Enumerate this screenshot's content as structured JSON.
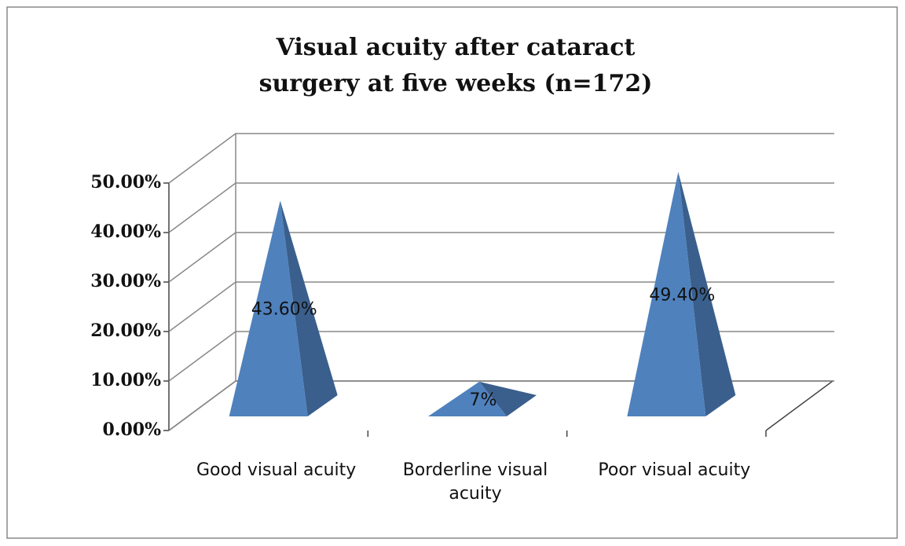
{
  "chart_data": {
    "type": "pyramid3d",
    "title": "Visual acuity after cataract surgery at five weeks (n=172)",
    "categories": [
      "Good visual acuity",
      "Borderline visual acuity",
      "Poor visual acuity"
    ],
    "values": [
      43.6,
      7,
      49.4
    ],
    "value_labels": [
      "43.60%",
      "7%",
      "49.40%"
    ],
    "color": "#4f81bd",
    "ylim": [
      0,
      50
    ],
    "yticks": [
      {
        "value": 0,
        "label": "0.00%"
      },
      {
        "value": 10,
        "label": "10.00%"
      },
      {
        "value": 20,
        "label": "20.00%"
      },
      {
        "value": 30,
        "label": "30.00%"
      },
      {
        "value": 40,
        "label": "40.00%"
      },
      {
        "value": 50,
        "label": "50.00%"
      }
    ],
    "grid": true
  }
}
